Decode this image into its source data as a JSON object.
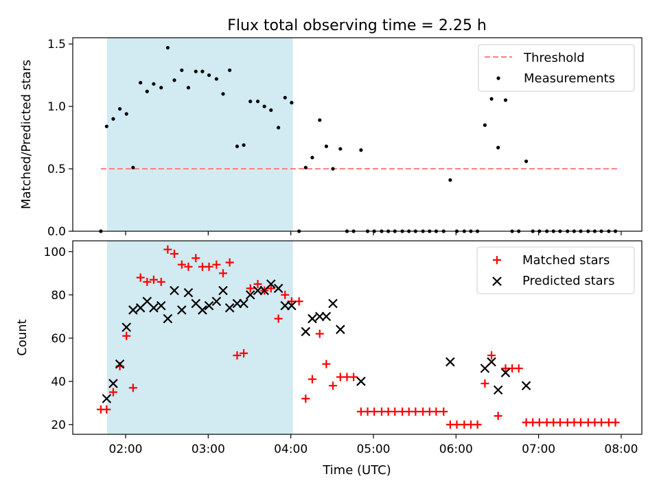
{
  "figure": {
    "title": "Flux total observing time = 2.25 h",
    "xlabel": "Time (UTC)",
    "xlim": [
      1.36,
      8.25
    ],
    "xticks": [
      2,
      3,
      4,
      5,
      6,
      7,
      8
    ],
    "xtick_labels": [
      "02:00",
      "03:00",
      "04:00",
      "05:00",
      "06:00",
      "07:00",
      "08:00"
    ],
    "shaded_interval": [
      1.775,
      4.025
    ],
    "shade_color": "#add8e6",
    "marker_color": "#ff0000",
    "threshold_color": "#ff7f7f"
  },
  "chart_data": [
    {
      "type": "scatter",
      "ylabel": "Matched/Predicted stars",
      "ylim": [
        0,
        1.55
      ],
      "yticks": [
        0.0,
        0.5,
        1.0,
        1.5
      ],
      "ytick_labels": [
        "0.0",
        "0.5",
        "1.0",
        "1.5"
      ],
      "legend_position": "upper right",
      "legend": [
        "Threshold",
        "Measurements"
      ],
      "threshold": {
        "name": "Threshold",
        "y": 0.5,
        "x_range": [
          1.7,
          7.95
        ],
        "style": "dashed",
        "color": "#ff7f7f"
      },
      "series": [
        {
          "name": "Measurements",
          "marker": "dot",
          "color": "#000000",
          "points": [
            [
              1.7,
              0.0
            ],
            [
              1.77,
              0.84
            ],
            [
              1.85,
              0.9
            ],
            [
              1.93,
              0.98
            ],
            [
              2.01,
              0.94
            ],
            [
              2.09,
              0.51
            ],
            [
              2.18,
              1.19
            ],
            [
              2.26,
              1.12
            ],
            [
              2.34,
              1.18
            ],
            [
              2.43,
              1.15
            ],
            [
              2.51,
              1.47
            ],
            [
              2.59,
              1.21
            ],
            [
              2.68,
              1.29
            ],
            [
              2.76,
              1.15
            ],
            [
              2.85,
              1.28
            ],
            [
              2.93,
              1.28
            ],
            [
              3.01,
              1.25
            ],
            [
              3.1,
              1.22
            ],
            [
              3.18,
              1.1
            ],
            [
              3.26,
              1.29
            ],
            [
              3.35,
              0.68
            ],
            [
              3.43,
              0.69
            ],
            [
              3.51,
              1.04
            ],
            [
              3.6,
              1.04
            ],
            [
              3.68,
              1.0
            ],
            [
              3.76,
              0.97
            ],
            [
              3.85,
              0.83
            ],
            [
              3.93,
              1.07
            ],
            [
              4.01,
              1.03
            ],
            [
              4.1,
              0.0
            ],
            [
              4.18,
              0.51
            ],
            [
              4.26,
              0.59
            ],
            [
              4.35,
              0.89
            ],
            [
              4.43,
              0.68
            ],
            [
              4.51,
              0.5
            ],
            [
              4.6,
              0.66
            ],
            [
              4.68,
              0.0
            ],
            [
              4.76,
              0.0
            ],
            [
              4.85,
              0.65
            ],
            [
              4.93,
              0.0
            ],
            [
              5.01,
              0.0
            ],
            [
              5.1,
              0.0
            ],
            [
              5.18,
              0.0
            ],
            [
              5.26,
              0.0
            ],
            [
              5.35,
              0.0
            ],
            [
              5.43,
              0.0
            ],
            [
              5.51,
              0.0
            ],
            [
              5.6,
              0.0
            ],
            [
              5.68,
              0.0
            ],
            [
              5.76,
              0.0
            ],
            [
              5.85,
              0.0
            ],
            [
              5.93,
              0.41
            ],
            [
              6.01,
              0.0
            ],
            [
              6.1,
              0.0
            ],
            [
              6.18,
              0.0
            ],
            [
              6.26,
              0.0
            ],
            [
              6.35,
              0.85
            ],
            [
              6.43,
              1.06
            ],
            [
              6.51,
              0.67
            ],
            [
              6.6,
              1.05
            ],
            [
              6.68,
              0.0
            ],
            [
              6.76,
              0.0
            ],
            [
              6.85,
              0.56
            ],
            [
              6.93,
              0.0
            ],
            [
              7.01,
              0.0
            ],
            [
              7.1,
              0.0
            ],
            [
              7.18,
              0.0
            ],
            [
              7.26,
              0.0
            ],
            [
              7.35,
              0.0
            ],
            [
              7.43,
              0.0
            ],
            [
              7.51,
              0.0
            ],
            [
              7.6,
              0.0
            ],
            [
              7.68,
              0.0
            ],
            [
              7.76,
              0.0
            ],
            [
              7.85,
              0.0
            ],
            [
              7.93,
              0.0
            ]
          ]
        }
      ]
    },
    {
      "type": "scatter",
      "ylabel": "Count",
      "ylim": [
        15.5,
        105
      ],
      "yticks": [
        20,
        40,
        60,
        80,
        100
      ],
      "ytick_labels": [
        "20",
        "40",
        "60",
        "80",
        "100"
      ],
      "legend_position": "upper right",
      "legend": [
        "Matched stars",
        "Predicted stars"
      ],
      "series": [
        {
          "name": "Matched stars",
          "marker": "plus",
          "color": "#ff0000",
          "points": [
            [
              1.7,
              27
            ],
            [
              1.77,
              27
            ],
            [
              1.85,
              35
            ],
            [
              1.93,
              47
            ],
            [
              2.01,
              61
            ],
            [
              2.09,
              37
            ],
            [
              2.18,
              88
            ],
            [
              2.26,
              86
            ],
            [
              2.34,
              87
            ],
            [
              2.43,
              86
            ],
            [
              2.51,
              101
            ],
            [
              2.59,
              99
            ],
            [
              2.68,
              94
            ],
            [
              2.76,
              93
            ],
            [
              2.85,
              97
            ],
            [
              2.93,
              93
            ],
            [
              3.01,
              93
            ],
            [
              3.1,
              94
            ],
            [
              3.18,
              90
            ],
            [
              3.26,
              95
            ],
            [
              3.35,
              52
            ],
            [
              3.43,
              53
            ],
            [
              3.51,
              83
            ],
            [
              3.6,
              85
            ],
            [
              3.68,
              82
            ],
            [
              3.76,
              83
            ],
            [
              3.85,
              69
            ],
            [
              3.93,
              80
            ],
            [
              4.01,
              77
            ],
            [
              4.1,
              77
            ],
            [
              4.18,
              32
            ],
            [
              4.26,
              41
            ],
            [
              4.35,
              62
            ],
            [
              4.43,
              48
            ],
            [
              4.51,
              38
            ],
            [
              4.6,
              42
            ],
            [
              4.68,
              42
            ],
            [
              4.76,
              42
            ],
            [
              4.85,
              26
            ],
            [
              4.93,
              26
            ],
            [
              5.01,
              26
            ],
            [
              5.1,
              26
            ],
            [
              5.18,
              26
            ],
            [
              5.26,
              26
            ],
            [
              5.35,
              26
            ],
            [
              5.43,
              26
            ],
            [
              5.51,
              26
            ],
            [
              5.6,
              26
            ],
            [
              5.68,
              26
            ],
            [
              5.76,
              26
            ],
            [
              5.85,
              26
            ],
            [
              5.93,
              20
            ],
            [
              6.01,
              20
            ],
            [
              6.1,
              20
            ],
            [
              6.18,
              20
            ],
            [
              6.26,
              20
            ],
            [
              6.35,
              39
            ],
            [
              6.43,
              52
            ],
            [
              6.51,
              24
            ],
            [
              6.6,
              46
            ],
            [
              6.68,
              46
            ],
            [
              6.76,
              46
            ],
            [
              6.85,
              21
            ],
            [
              6.93,
              21
            ],
            [
              7.01,
              21
            ],
            [
              7.1,
              21
            ],
            [
              7.18,
              21
            ],
            [
              7.26,
              21
            ],
            [
              7.35,
              21
            ],
            [
              7.43,
              21
            ],
            [
              7.51,
              21
            ],
            [
              7.6,
              21
            ],
            [
              7.68,
              21
            ],
            [
              7.76,
              21
            ],
            [
              7.85,
              21
            ],
            [
              7.93,
              21
            ]
          ]
        },
        {
          "name": "Predicted stars",
          "marker": "x",
          "color": "#000000",
          "points": [
            [
              1.77,
              32
            ],
            [
              1.85,
              39
            ],
            [
              1.93,
              48
            ],
            [
              2.01,
              65
            ],
            [
              2.09,
              73
            ],
            [
              2.18,
              74
            ],
            [
              2.26,
              77
            ],
            [
              2.34,
              74
            ],
            [
              2.43,
              75
            ],
            [
              2.51,
              69
            ],
            [
              2.59,
              82
            ],
            [
              2.68,
              73
            ],
            [
              2.76,
              81
            ],
            [
              2.85,
              76
            ],
            [
              2.93,
              73
            ],
            [
              3.01,
              75
            ],
            [
              3.1,
              77
            ],
            [
              3.18,
              82
            ],
            [
              3.26,
              74
            ],
            [
              3.35,
              76
            ],
            [
              3.43,
              76
            ],
            [
              3.51,
              80
            ],
            [
              3.6,
              82
            ],
            [
              3.68,
              82
            ],
            [
              3.76,
              85
            ],
            [
              3.85,
              83
            ],
            [
              3.93,
              75
            ],
            [
              4.01,
              75
            ],
            [
              4.18,
              63
            ],
            [
              4.26,
              69
            ],
            [
              4.35,
              70
            ],
            [
              4.43,
              70
            ],
            [
              4.51,
              76
            ],
            [
              4.6,
              64
            ],
            [
              4.85,
              40
            ],
            [
              5.93,
              49
            ],
            [
              6.35,
              46
            ],
            [
              6.43,
              49
            ],
            [
              6.51,
              36
            ],
            [
              6.6,
              44
            ],
            [
              6.85,
              38
            ]
          ]
        }
      ]
    }
  ]
}
